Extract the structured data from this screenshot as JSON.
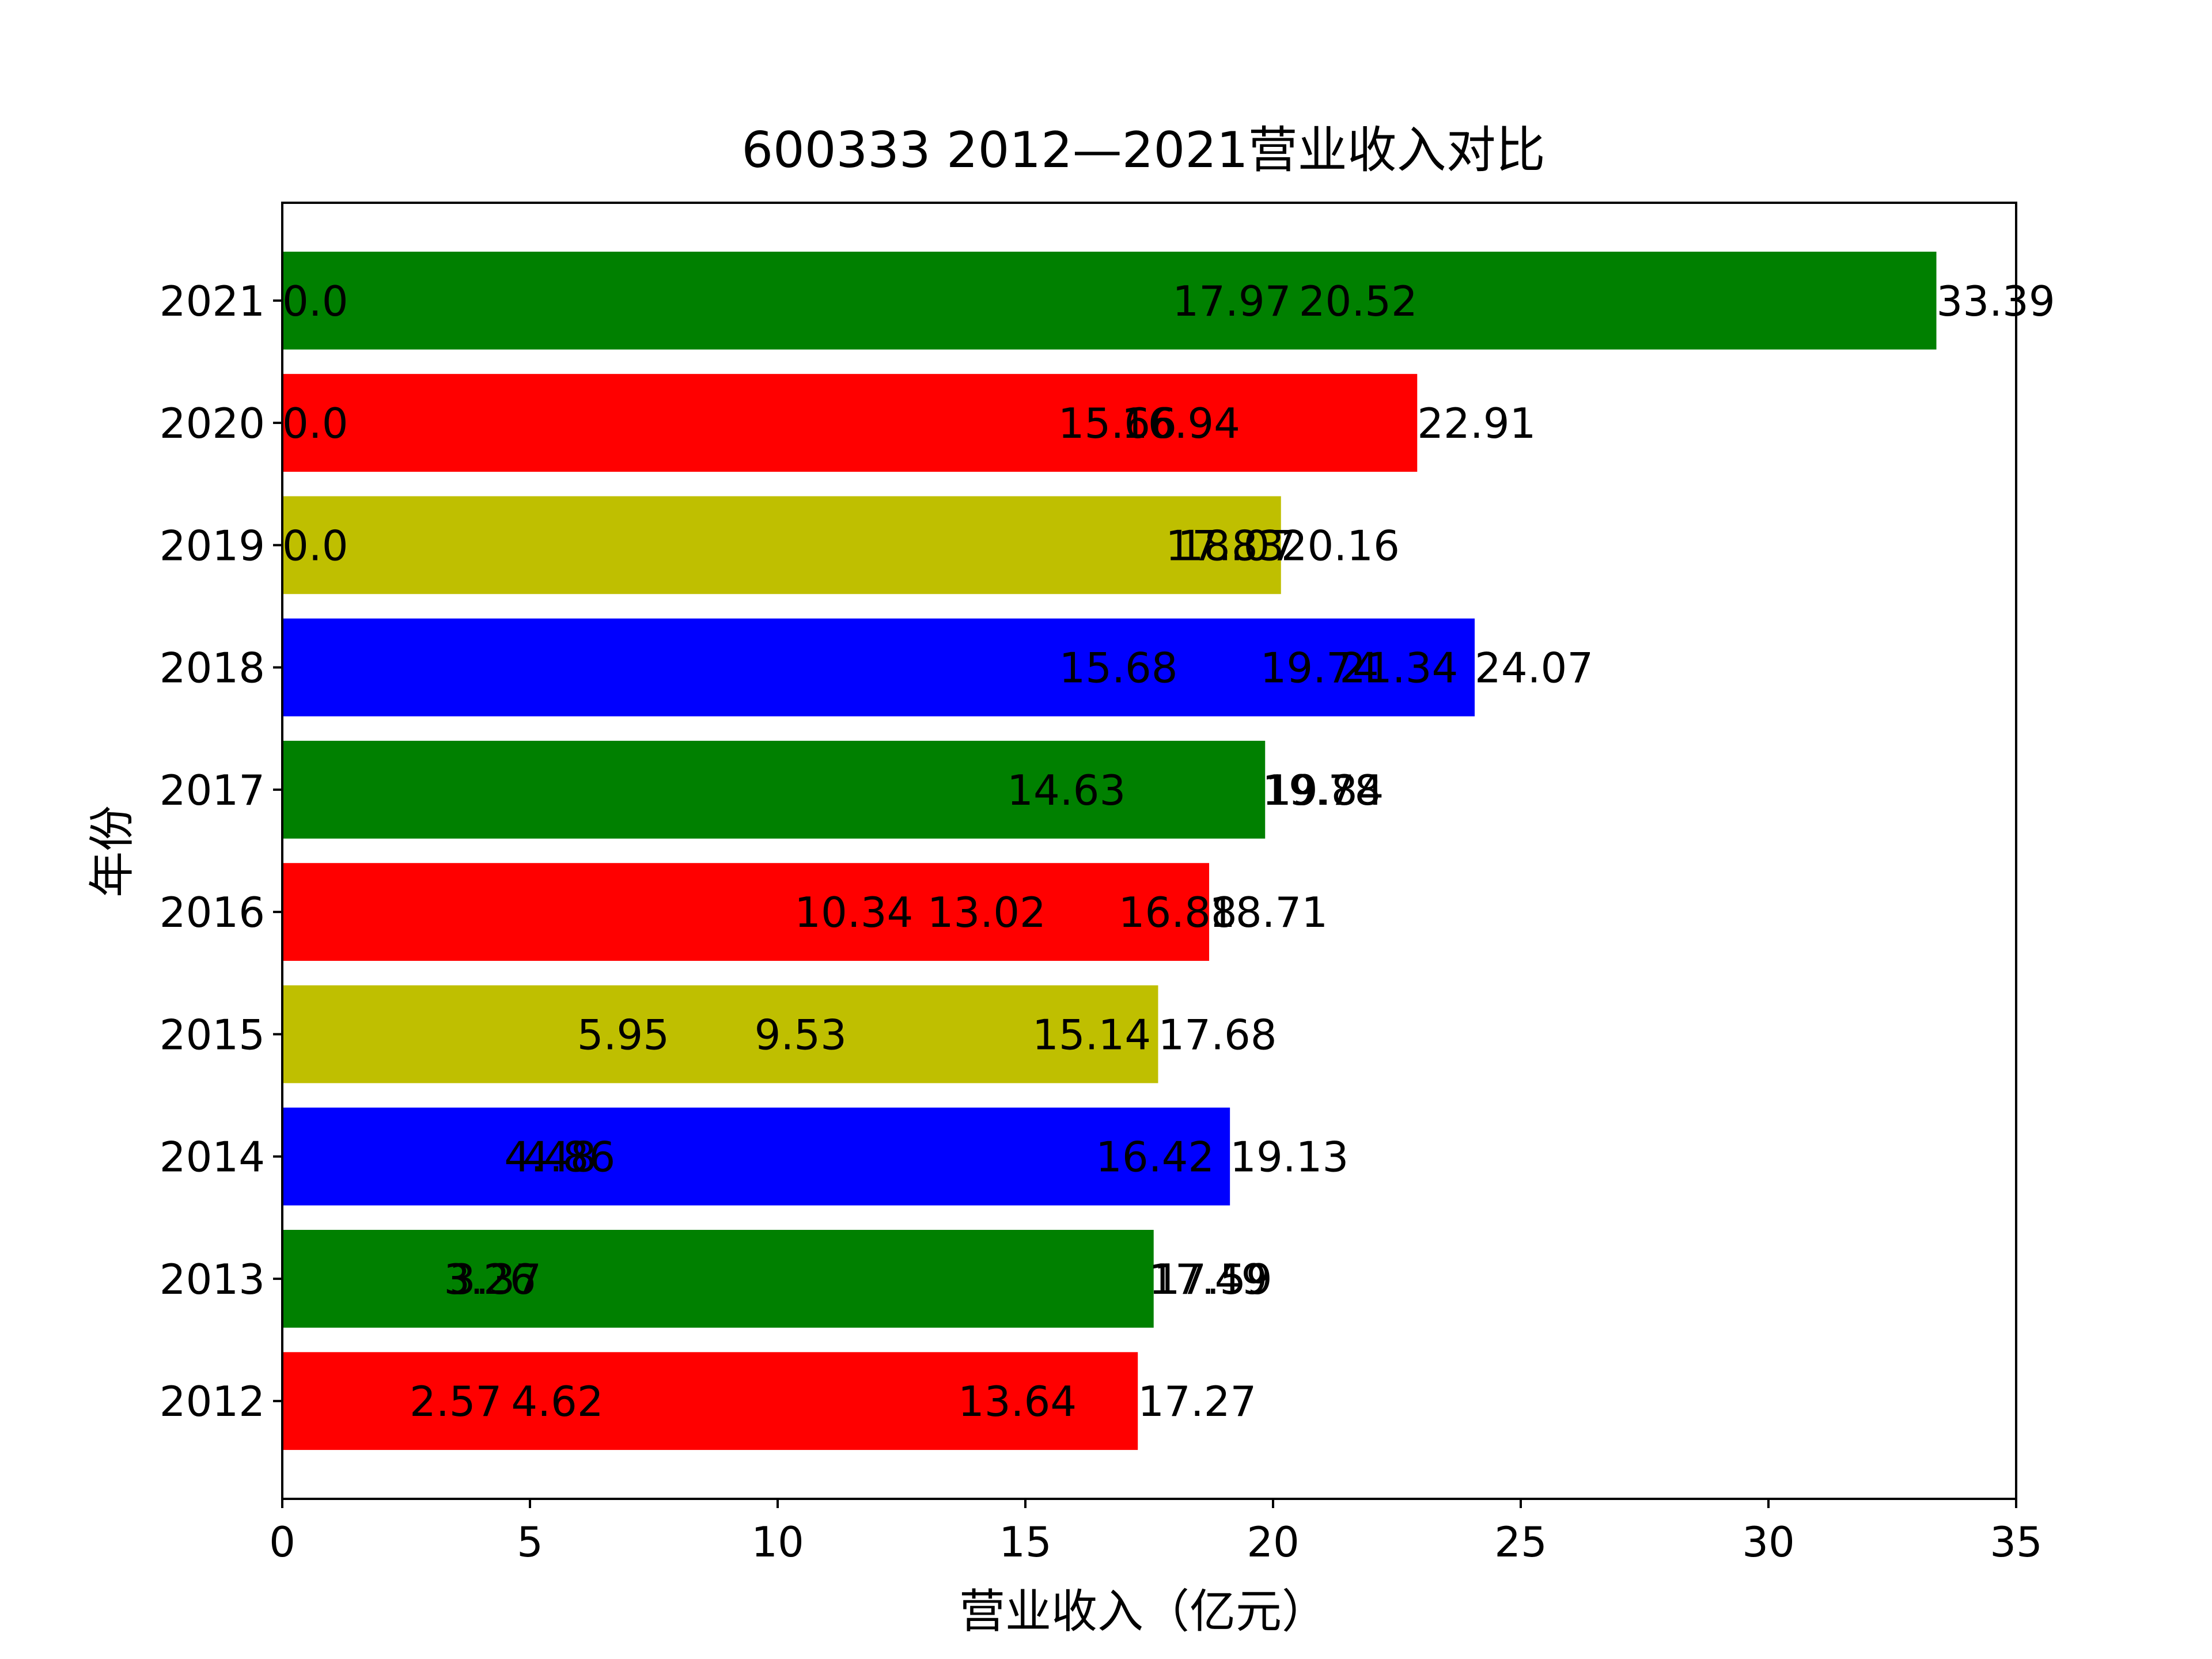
{
  "chart_data": {
    "type": "bar",
    "orientation": "horizontal",
    "title": "600333 2012—2021营业收入对比",
    "xlabel": "营业收入（亿元）",
    "ylabel": "年份",
    "xlim": [
      0,
      35
    ],
    "xticks": [
      "0",
      "5",
      "10",
      "15",
      "20",
      "25",
      "30",
      "35"
    ],
    "grid": false,
    "categories": [
      "2012",
      "2013",
      "2014",
      "2015",
      "2016",
      "2017",
      "2018",
      "2019",
      "2020",
      "2021"
    ],
    "values": [
      17.27,
      17.59,
      19.13,
      17.68,
      18.71,
      19.84,
      24.07,
      20.16,
      22.91,
      33.39
    ],
    "bar_colors": [
      "#ff0000",
      "#008000",
      "#0000ff",
      "#bfbf00",
      "#ff0000",
      "#008000",
      "#0000ff",
      "#bfbf00",
      "#ff0000",
      "#008000"
    ],
    "data_labels": [
      [
        "2.57",
        "4.62",
        "13.64",
        "17.27"
      ],
      [
        "3.26",
        "3.37",
        "17.49",
        "17.59"
      ],
      [
        "4.48",
        "4.86",
        "16.42",
        "19.13"
      ],
      [
        "5.95",
        "9.53",
        "15.14",
        "17.68"
      ],
      [
        "10.34",
        "13.02",
        "16.88",
        "18.71"
      ],
      [
        "14.63",
        "19.78",
        "19.84"
      ],
      [
        "15.68",
        "19.74",
        "21.34",
        "24.07"
      ],
      [
        "0.0",
        "17.83",
        "18.07",
        "20.16"
      ],
      [
        "0.0",
        "15.66",
        "16.94",
        "22.91"
      ],
      [
        "0.0",
        "17.97",
        "20.52",
        "33.39"
      ]
    ]
  }
}
